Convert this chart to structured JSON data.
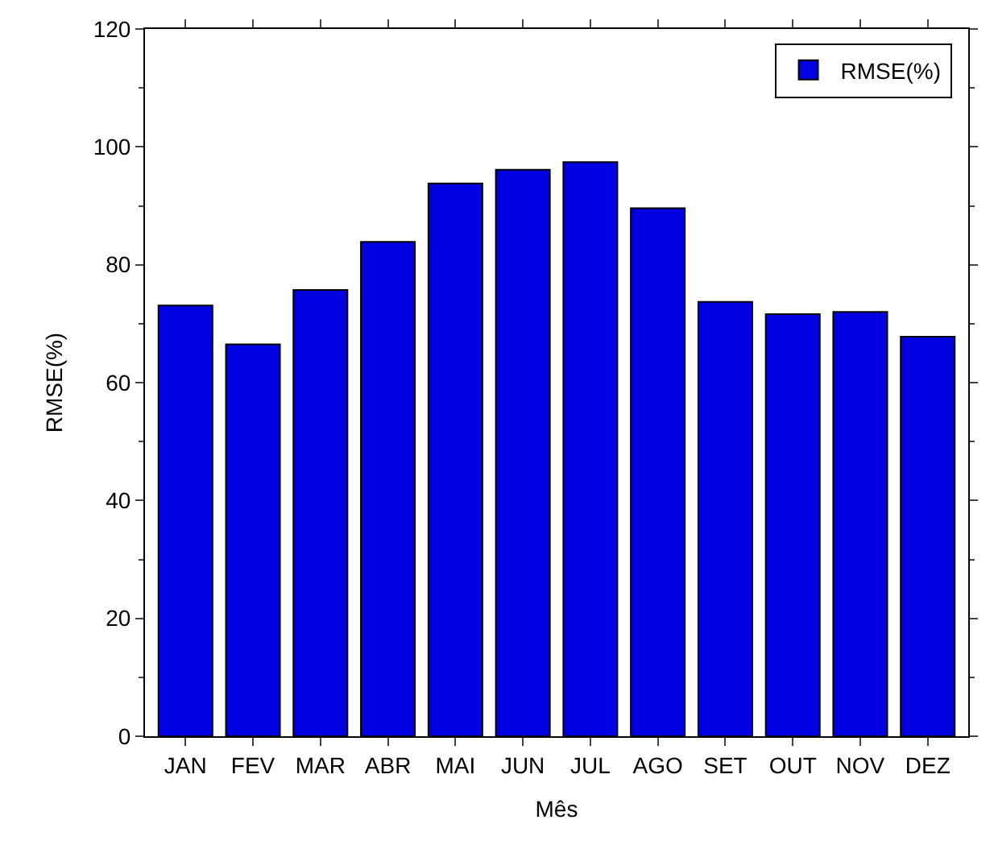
{
  "chart_data": {
    "type": "bar",
    "xlabel": "Mês",
    "ylabel": "RMSE(%)",
    "categories": [
      "JAN",
      "FEV",
      "MAR",
      "ABR",
      "MAI",
      "JUN",
      "JUL",
      "AGO",
      "SET",
      "OUT",
      "NOV",
      "DEZ"
    ],
    "series": [
      {
        "name": "RMSE(%)",
        "color": "#0000e0",
        "values": [
          73.1,
          66.5,
          75.7,
          83.9,
          93.8,
          96.1,
          97.4,
          89.6,
          73.7,
          71.6,
          72.0,
          67.8
        ]
      }
    ],
    "ylim": [
      0,
      120
    ],
    "yticks": [
      0,
      20,
      40,
      60,
      80,
      100,
      120
    ],
    "legend": "top right"
  }
}
